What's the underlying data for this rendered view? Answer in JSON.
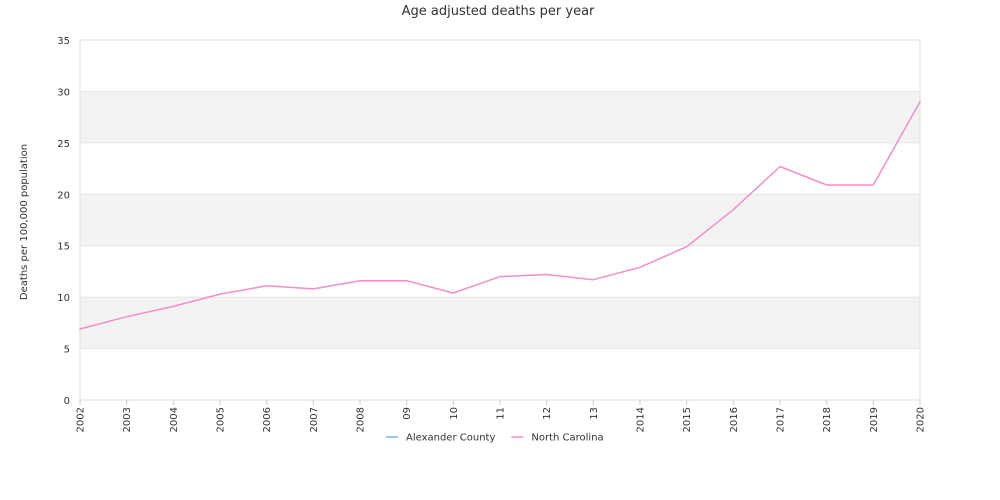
{
  "chart_data": {
    "type": "line",
    "title": "Age adjusted deaths per year",
    "xlabel": "",
    "ylabel": "Deaths per 100,000 population",
    "ylim": [
      0,
      35
    ],
    "yticks": [
      0,
      5,
      10,
      15,
      20,
      25,
      30,
      35
    ],
    "x": [
      "2002",
      "2003",
      "2004",
      "2005",
      "2006",
      "2007",
      "2008",
      "09",
      "10",
      "11",
      "12",
      "13",
      "2014",
      "2015",
      "2016",
      "2017",
      "2018",
      "2019",
      "2020"
    ],
    "grid": true,
    "legend_position": "bottom",
    "series": [
      {
        "name": "Alexander County",
        "color": "#7cb5ec",
        "values": [
          null,
          null,
          null,
          null,
          null,
          null,
          null,
          null,
          null,
          null,
          null,
          null,
          null,
          null,
          null,
          null,
          null,
          null,
          null
        ]
      },
      {
        "name": "North Carolina",
        "color": "#f28fc5",
        "values": [
          6.9,
          8.1,
          9.1,
          10.3,
          11.1,
          10.8,
          11.6,
          11.6,
          10.4,
          12.0,
          12.2,
          11.7,
          12.9,
          14.9,
          18.5,
          22.7,
          20.9,
          20.9,
          29.0
        ]
      }
    ]
  }
}
